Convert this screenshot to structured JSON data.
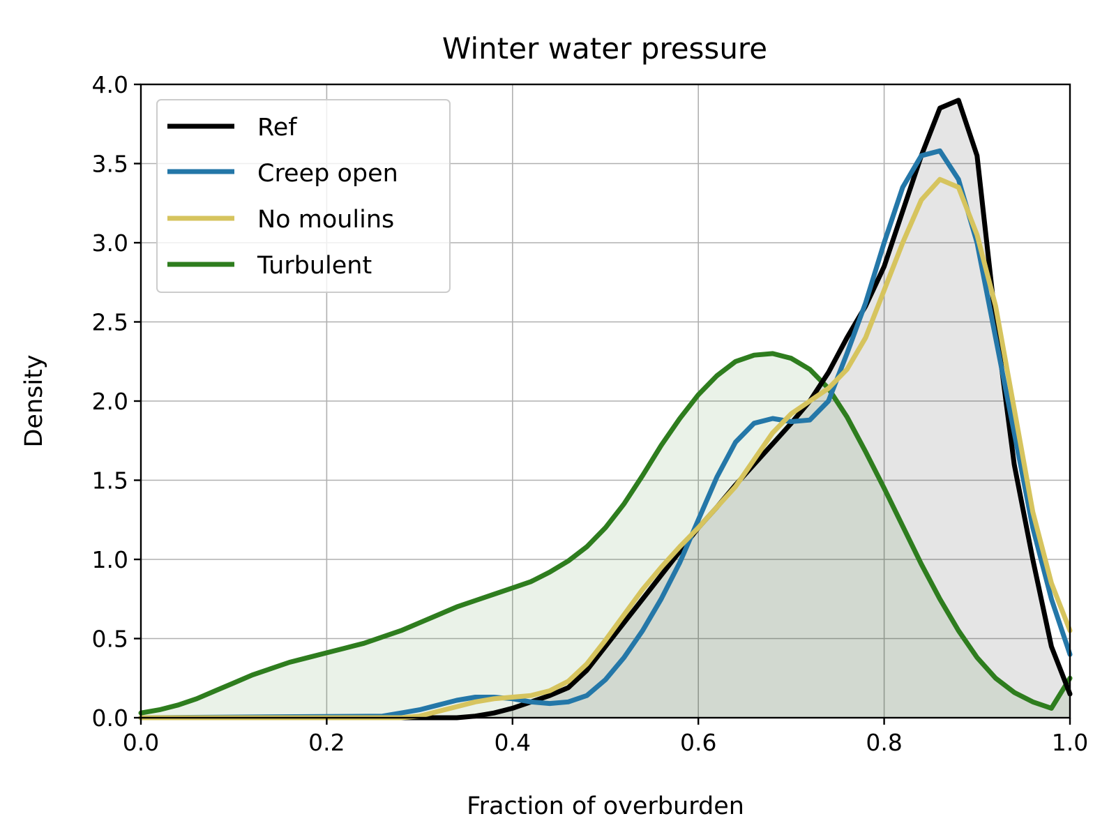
{
  "chart_data": {
    "type": "line",
    "title": "Winter water pressure",
    "xlabel": "Fraction of overburden",
    "ylabel": "Density",
    "xlim": [
      0.0,
      1.0
    ],
    "ylim": [
      0.0,
      4.0
    ],
    "grid": true,
    "legend_position": "top-left",
    "x_ticks": [
      "0.0",
      "0.2",
      "0.4",
      "0.6",
      "0.8",
      "1.0"
    ],
    "y_ticks": [
      "0.0",
      "0.5",
      "1.0",
      "1.5",
      "2.0",
      "2.5",
      "3.0",
      "3.5",
      "4.0"
    ],
    "x_tick_values": [
      0.0,
      0.2,
      0.4,
      0.6,
      0.8,
      1.0
    ],
    "y_tick_values": [
      0.0,
      0.5,
      1.0,
      1.5,
      2.0,
      2.5,
      3.0,
      3.5,
      4.0
    ],
    "series": [
      {
        "name": "Turbulent",
        "color": "#2e7d1e",
        "fill": true,
        "x": [
          0.0,
          0.02,
          0.04,
          0.06,
          0.08,
          0.1,
          0.12,
          0.14,
          0.16,
          0.18,
          0.2,
          0.22,
          0.24,
          0.26,
          0.28,
          0.3,
          0.32,
          0.34,
          0.36,
          0.38,
          0.4,
          0.42,
          0.44,
          0.46,
          0.48,
          0.5,
          0.52,
          0.54,
          0.56,
          0.58,
          0.6,
          0.62,
          0.64,
          0.66,
          0.68,
          0.7,
          0.72,
          0.74,
          0.76,
          0.78,
          0.8,
          0.82,
          0.84,
          0.86,
          0.88,
          0.9,
          0.92,
          0.94,
          0.96,
          0.98,
          1.0
        ],
        "y": [
          0.03,
          0.05,
          0.08,
          0.12,
          0.17,
          0.22,
          0.27,
          0.31,
          0.35,
          0.38,
          0.41,
          0.44,
          0.47,
          0.51,
          0.55,
          0.6,
          0.65,
          0.7,
          0.74,
          0.78,
          0.82,
          0.86,
          0.92,
          0.99,
          1.08,
          1.2,
          1.35,
          1.53,
          1.72,
          1.89,
          2.04,
          2.16,
          2.25,
          2.29,
          2.3,
          2.27,
          2.2,
          2.08,
          1.9,
          1.68,
          1.45,
          1.21,
          0.97,
          0.75,
          0.55,
          0.38,
          0.25,
          0.16,
          0.1,
          0.06,
          0.25
        ]
      },
      {
        "name": "Ref",
        "color": "#000000",
        "fill": true,
        "x": [
          0.0,
          0.3,
          0.34,
          0.36,
          0.38,
          0.4,
          0.42,
          0.44,
          0.46,
          0.48,
          0.5,
          0.52,
          0.54,
          0.56,
          0.58,
          0.6,
          0.62,
          0.64,
          0.66,
          0.68,
          0.7,
          0.72,
          0.74,
          0.76,
          0.78,
          0.8,
          0.82,
          0.84,
          0.86,
          0.88,
          0.9,
          0.92,
          0.94,
          0.96,
          0.98,
          1.0
        ],
        "y": [
          0.0,
          0.0,
          0.0,
          0.01,
          0.03,
          0.06,
          0.1,
          0.14,
          0.19,
          0.3,
          0.45,
          0.6,
          0.75,
          0.9,
          1.05,
          1.2,
          1.33,
          1.47,
          1.6,
          1.73,
          1.86,
          2.0,
          2.18,
          2.4,
          2.6,
          2.85,
          3.2,
          3.55,
          3.85,
          3.9,
          3.55,
          2.5,
          1.6,
          1.0,
          0.45,
          0.15
        ]
      },
      {
        "name": "Creep open",
        "color": "#2477a8",
        "fill": false,
        "x": [
          0.0,
          0.26,
          0.28,
          0.3,
          0.32,
          0.34,
          0.36,
          0.38,
          0.4,
          0.42,
          0.44,
          0.46,
          0.48,
          0.5,
          0.52,
          0.54,
          0.56,
          0.58,
          0.6,
          0.62,
          0.64,
          0.66,
          0.68,
          0.7,
          0.72,
          0.74,
          0.76,
          0.78,
          0.8,
          0.82,
          0.84,
          0.86,
          0.88,
          0.9,
          0.92,
          0.94,
          0.96,
          0.98,
          1.0
        ],
        "y": [
          0.0,
          0.01,
          0.03,
          0.05,
          0.08,
          0.11,
          0.13,
          0.13,
          0.12,
          0.1,
          0.09,
          0.1,
          0.14,
          0.24,
          0.38,
          0.55,
          0.75,
          0.98,
          1.25,
          1.52,
          1.74,
          1.86,
          1.89,
          1.87,
          1.88,
          2.0,
          2.3,
          2.62,
          3.0,
          3.35,
          3.55,
          3.58,
          3.4,
          3.0,
          2.4,
          1.8,
          1.2,
          0.75,
          0.4
        ]
      },
      {
        "name": "No moulins",
        "color": "#d6c45e",
        "fill": false,
        "x": [
          0.0,
          0.28,
          0.3,
          0.32,
          0.34,
          0.36,
          0.38,
          0.4,
          0.42,
          0.44,
          0.46,
          0.48,
          0.5,
          0.52,
          0.54,
          0.56,
          0.58,
          0.6,
          0.62,
          0.64,
          0.66,
          0.68,
          0.7,
          0.72,
          0.74,
          0.76,
          0.78,
          0.8,
          0.82,
          0.84,
          0.86,
          0.88,
          0.9,
          0.92,
          0.94,
          0.96,
          0.98,
          1.0
        ],
        "y": [
          0.0,
          0.0,
          0.01,
          0.04,
          0.07,
          0.1,
          0.12,
          0.13,
          0.14,
          0.17,
          0.23,
          0.34,
          0.49,
          0.65,
          0.81,
          0.95,
          1.08,
          1.2,
          1.33,
          1.46,
          1.63,
          1.8,
          1.92,
          2.0,
          2.08,
          2.2,
          2.4,
          2.7,
          3.0,
          3.27,
          3.4,
          3.35,
          3.05,
          2.6,
          1.95,
          1.3,
          0.85,
          0.55
        ]
      }
    ],
    "legend": [
      {
        "label": "Ref",
        "color": "#000000"
      },
      {
        "label": "Creep open",
        "color": "#2477a8"
      },
      {
        "label": "No moulins",
        "color": "#d6c45e"
      },
      {
        "label": "Turbulent",
        "color": "#2e7d1e"
      }
    ]
  }
}
